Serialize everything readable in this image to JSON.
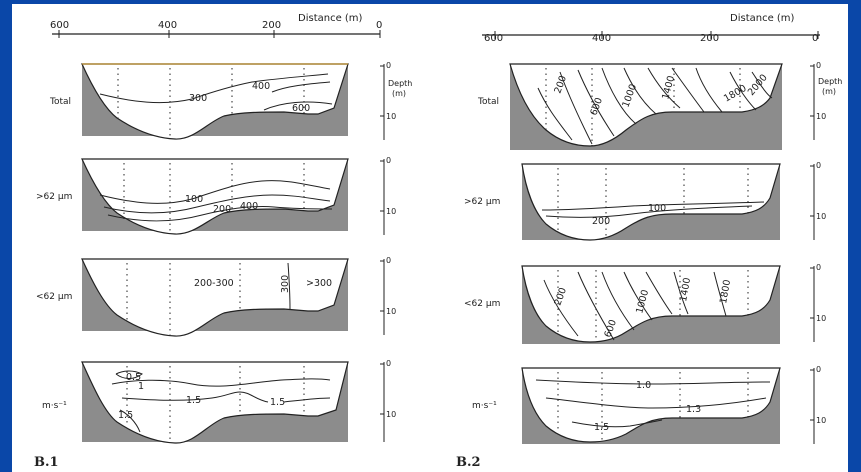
{
  "figure": {
    "left": {
      "panel_label": "B.1",
      "axis_title": "Distance (m)",
      "ticks": [
        "600",
        "400",
        "200",
        "0"
      ],
      "depth_title": [
        "Depth",
        "(m)"
      ],
      "rows": [
        {
          "label": "Total",
          "depth_ticks": [
            "0",
            "10"
          ],
          "contour_labels": [
            "300",
            "400",
            "600"
          ]
        },
        {
          "label": ">62 µm",
          "depth_ticks": [
            "0",
            "10"
          ],
          "contour_labels": [
            "100",
            "200",
            "400"
          ]
        },
        {
          "label": "<62 µm",
          "depth_ticks": [
            "0",
            "10"
          ],
          "contour_labels": [
            "200-300",
            "300",
            ">300"
          ]
        },
        {
          "label": "m·s⁻¹",
          "depth_ticks": [
            "0",
            "10"
          ],
          "contour_labels": [
            "0.5",
            "1",
            "1.5",
            "1.5",
            "1.5"
          ]
        }
      ]
    },
    "right": {
      "panel_label": "B.2",
      "axis_title": "Distance (m)",
      "ticks": [
        "600",
        "400",
        "200",
        "0"
      ],
      "depth_title": [
        "Depth",
        "(m)"
      ],
      "rows": [
        {
          "label": "Total",
          "depth_ticks": [
            "0",
            "10"
          ],
          "contour_labels": [
            "200",
            "600",
            "1000",
            "1400",
            "1800",
            "2000"
          ]
        },
        {
          "label": ">62 µm",
          "depth_ticks": [
            "0",
            "10"
          ],
          "contour_labels": [
            "100",
            "200"
          ]
        },
        {
          "label": "<62 µm",
          "depth_ticks": [
            "0",
            "10"
          ],
          "contour_labels": [
            "200",
            "600",
            "1000",
            "1400",
            "1800"
          ]
        },
        {
          "label": "m·s⁻¹",
          "depth_ticks": [
            "0",
            "10"
          ],
          "contour_labels": [
            "1.0",
            "1.3",
            "1.5"
          ]
        }
      ]
    }
  },
  "colors": {
    "frame": "#0a47a8",
    "paper": "#ffffff",
    "seabed": "#8c8c8c",
    "ink": "#222222"
  }
}
